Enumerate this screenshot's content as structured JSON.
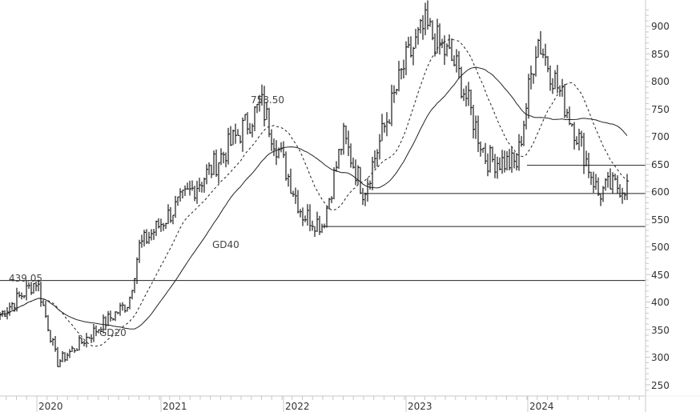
{
  "chart_data": {
    "type": "ohlc",
    "title": "",
    "xlabel": "",
    "ylabel": "",
    "ylim": [
      230,
      940
    ],
    "y_ticks": [
      250,
      300,
      350,
      400,
      450,
      500,
      550,
      600,
      650,
      700,
      750,
      800,
      850,
      900
    ],
    "x_ticks": [
      "2020",
      "2021",
      "2022",
      "2023",
      "2024"
    ],
    "grid": false,
    "legend": null,
    "annotations": [
      {
        "text": "439.05",
        "value": 439.05,
        "kind": "price-label"
      },
      {
        "text": "758.50",
        "value": 758.5,
        "kind": "price-label"
      },
      {
        "text": "GD20",
        "kind": "moving-average-label",
        "series": "GD20"
      },
      {
        "text": "GD40",
        "kind": "moving-average-label",
        "series": "GD40"
      }
    ],
    "horizontal_lines": [
      {
        "value": 439.05,
        "from": "2019-09",
        "to": "end"
      },
      {
        "value": 537,
        "from": "2022-05",
        "to": "end"
      },
      {
        "value": 597,
        "from": "2022-09",
        "to": "end"
      },
      {
        "value": 648,
        "from": "2024-01",
        "to": "end"
      }
    ],
    "series": [
      {
        "name": "Price",
        "style": "ohlc-bars"
      },
      {
        "name": "GD20",
        "style": "dashed"
      },
      {
        "name": "GD40",
        "style": "solid"
      }
    ],
    "key_points": [
      {
        "date": "2019-09",
        "close": 370
      },
      {
        "date": "2020-01",
        "close": 439
      },
      {
        "date": "2020-03",
        "close": 290
      },
      {
        "date": "2020-10",
        "close": 400
      },
      {
        "date": "2020-11",
        "close": 500
      },
      {
        "date": "2021-06",
        "close": 640
      },
      {
        "date": "2021-11",
        "close": 758.5
      },
      {
        "date": "2022-03",
        "close": 560
      },
      {
        "date": "2022-05",
        "close": 540
      },
      {
        "date": "2022-07",
        "close": 700
      },
      {
        "date": "2022-09",
        "close": 600
      },
      {
        "date": "2023-01",
        "close": 830
      },
      {
        "date": "2023-03",
        "close": 900
      },
      {
        "date": "2023-06",
        "close": 830
      },
      {
        "date": "2023-09",
        "close": 660
      },
      {
        "date": "2023-12",
        "close": 650
      },
      {
        "date": "2024-02",
        "close": 880
      },
      {
        "date": "2024-06",
        "close": 700
      },
      {
        "date": "2024-08",
        "close": 595
      },
      {
        "date": "2024-09",
        "close": 610
      }
    ]
  },
  "axis": {
    "y_labels": [
      "900",
      "850",
      "800",
      "750",
      "700",
      "650",
      "600",
      "550",
      "500",
      "450",
      "400",
      "350",
      "300",
      "250"
    ],
    "x_labels": [
      "2020",
      "2021",
      "2022",
      "2023",
      "2024"
    ]
  },
  "labels": {
    "high_2020": "439.05",
    "high_2021": "758.50",
    "gd20": "GD20",
    "gd40": "GD40"
  },
  "colors": {
    "bars": "#1a1a1a",
    "axis": "#c8c8c8",
    "text": "#333333",
    "background": "#ffffff"
  }
}
